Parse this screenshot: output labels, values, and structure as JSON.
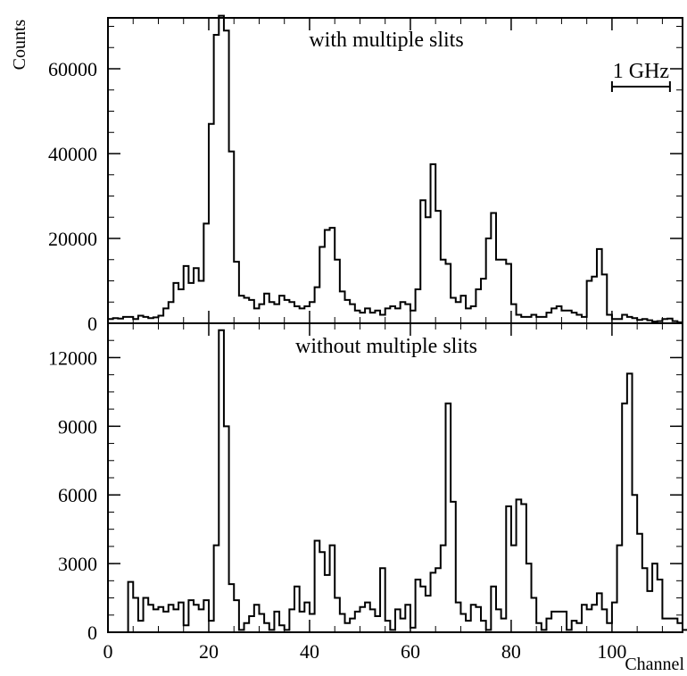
{
  "chart_data": [
    {
      "type": "histogram",
      "title": "with multiple slits",
      "ylabel": "Counts",
      "xlabel": "",
      "xlim": [
        0,
        114
      ],
      "ylim": [
        0,
        72000
      ],
      "yticks": [
        0,
        20000,
        40000,
        60000
      ],
      "xticks": [],
      "annotation": "1 GHz",
      "annotation_bar_channels": [
        100,
        111.5
      ],
      "bin_start": 0,
      "bin_width": 1,
      "values": [
        1000,
        1200,
        1100,
        1500,
        1500,
        1000,
        1800,
        1500,
        1200,
        1400,
        1800,
        3500,
        5000,
        9500,
        8000,
        13500,
        9500,
        13000,
        10000,
        23500,
        47000,
        68000,
        72500,
        69000,
        40500,
        14500,
        6500,
        6000,
        5500,
        3500,
        4500,
        7000,
        5000,
        4500,
        6500,
        5500,
        5000,
        4000,
        3500,
        4000,
        5000,
        8500,
        18000,
        22000,
        22500,
        15000,
        7500,
        5500,
        4500,
        3000,
        2500,
        3500,
        2500,
        3000,
        2000,
        3500,
        4000,
        3500,
        5000,
        4500,
        3000,
        8000,
        29000,
        25000,
        37500,
        26500,
        15000,
        14000,
        6000,
        5000,
        6500,
        3500,
        4000,
        8000,
        10500,
        20000,
        26000,
        15000,
        15000,
        14000,
        4500,
        2000,
        1500,
        1500,
        2000,
        1500,
        1500,
        2500,
        3500,
        4000,
        3000,
        3000,
        2500,
        2000,
        1500,
        10000,
        11000,
        17500,
        11500,
        2000,
        1000,
        1000,
        2000,
        1500,
        1200,
        800,
        1000,
        700,
        400,
        500,
        1000,
        1100,
        500,
        200
      ]
    },
    {
      "type": "histogram",
      "title": "without multiple slits",
      "ylabel": "",
      "xlabel": "Channel",
      "xlim": [
        0,
        114
      ],
      "ylim": [
        0,
        13500
      ],
      "yticks": [
        0,
        3000,
        6000,
        9000,
        12000
      ],
      "xticks": [
        0,
        20,
        40,
        60,
        80,
        100
      ],
      "bin_start": 4,
      "bin_width": 1,
      "values": [
        2200,
        1500,
        500,
        1500,
        1200,
        1000,
        1100,
        900,
        1200,
        1000,
        1300,
        300,
        1400,
        1200,
        1000,
        1400,
        500,
        3800,
        13200,
        9000,
        2100,
        1400,
        100,
        400,
        700,
        1200,
        800,
        400,
        100,
        900,
        300,
        100,
        1000,
        2000,
        900,
        1300,
        800,
        4000,
        3500,
        2500,
        3800,
        1500,
        800,
        400,
        600,
        900,
        1100,
        1300,
        1000,
        700,
        2800,
        500,
        100,
        1000,
        600,
        1200,
        200,
        2300,
        2000,
        1600,
        2600,
        2800,
        3800,
        10000,
        5700,
        1300,
        800,
        500,
        1200,
        1100,
        500,
        100,
        2000,
        1000,
        600,
        5500,
        3800,
        5800,
        5600,
        3000,
        1500,
        400,
        100,
        600,
        900,
        900,
        900,
        100,
        500,
        400,
        1200,
        1000,
        1200,
        1700,
        1000,
        400,
        1300,
        3800,
        10000,
        11300,
        6000,
        4300,
        2800,
        1800,
        3000,
        2300,
        600,
        600,
        600,
        400,
        100,
        100,
        400
      ]
    }
  ],
  "tick_format": {
    "panel_1": [
      "0",
      "20000",
      "40000",
      "60000"
    ],
    "panel_2": [
      "0",
      "3000",
      "6000",
      "9000",
      "12000"
    ],
    "x": [
      "0",
      "20",
      "40",
      "60",
      "80",
      "100"
    ]
  }
}
